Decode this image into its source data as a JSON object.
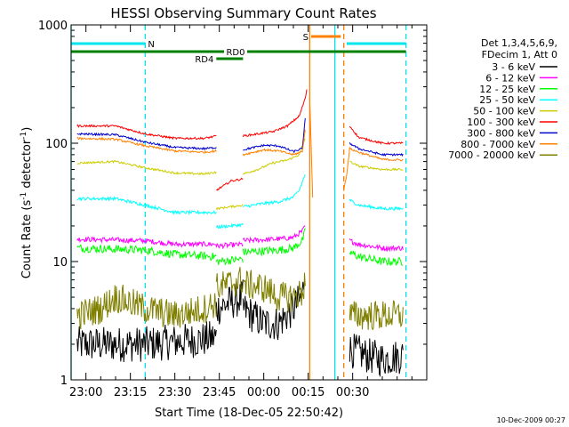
{
  "chart_data": {
    "type": "line",
    "title": "HESSI Observing Summary Count Rates",
    "xlabel": "Start Time (18-Dec-05 22:50:42)",
    "ylabel": "Count Rate (s",
    "ylabel_sup": "-1",
    "ylabel_tail": " detector",
    "ylabel_sup2": "-1",
    "ylabel_end": ")",
    "y_scale": "log",
    "ylim": [
      1,
      1000
    ],
    "xlim_minutes": [
      -5,
      115
    ],
    "x_tick_labels": [
      "23:00",
      "23:15",
      "23:30",
      "23:45",
      "00:00",
      "00:15",
      "00:30"
    ],
    "x_tick_minutes": [
      0,
      15,
      30,
      45,
      60,
      75,
      90
    ],
    "y_tick_labels": [
      "1",
      "10",
      "100",
      "1000"
    ],
    "y_tick_values": [
      1,
      10,
      100,
      1000
    ],
    "legend_position": "right",
    "legend_header": [
      "Det 1,3,4,5,6,9,",
      "FDecim 1, Att 0"
    ],
    "footer_text": "10-Dec-2009 00:27",
    "flag_bars": [
      {
        "label": "N",
        "row": 1,
        "color": "#00e5ee",
        "segments": [
          [
            -5,
            20
          ],
          [
            88,
            108
          ]
        ]
      },
      {
        "label": "S",
        "row": 0,
        "color": "#ff8000",
        "segments": [
          [
            76,
            86
          ]
        ]
      },
      {
        "label": "RD0",
        "row": 2,
        "color": "#008000",
        "segments": [
          [
            -5,
            108
          ]
        ]
      },
      {
        "label": "RD4",
        "row": 3,
        "color": "#008000",
        "segments": [
          [
            44,
            53
          ]
        ]
      }
    ],
    "vlines": [
      {
        "x": -5,
        "color": "#00e5ee",
        "style": "solid"
      },
      {
        "x": 20,
        "color": "#00e5ee",
        "style": "dashed"
      },
      {
        "x": 75.5,
        "color": "#ff8000",
        "style": "solid"
      },
      {
        "x": 84,
        "color": "#00e5ee",
        "style": "solid"
      },
      {
        "x": 87,
        "color": "#ff8000",
        "style": "dashed"
      },
      {
        "x": 108,
        "color": "#00e5ee",
        "style": "dashed"
      }
    ],
    "series": [
      {
        "name": "3 - 6 keV",
        "color": "#000000",
        "noise": 0.35,
        "segments": [
          {
            "x": [
              -3,
              10,
              20,
              30,
              40,
              44
            ],
            "y": [
              2.0,
              2.0,
              2.0,
              2.1,
              2.2,
              2.3
            ]
          },
          {
            "x": [
              44,
              53
            ],
            "y": [
              4.0,
              5.0
            ]
          },
          {
            "x": [
              53,
              60,
              65,
              70,
              73,
              74
            ],
            "y": [
              4.0,
              3.0,
              3.0,
              4.0,
              5.0,
              9.0
            ]
          },
          {
            "x": [
              89,
              95,
              100,
              107
            ],
            "y": [
              1.8,
              1.6,
              1.5,
              1.6
            ]
          }
        ]
      },
      {
        "name": "6 - 12 keV",
        "color": "#ff00ff",
        "noise": 0.05,
        "segments": [
          {
            "x": [
              -3,
              20,
              30,
              44
            ],
            "y": [
              15.5,
              15.0,
              14.0,
              14.0
            ]
          },
          {
            "x": [
              44,
              53
            ],
            "y": [
              13.5,
              14.0
            ]
          },
          {
            "x": [
              53,
              65,
              70,
              73,
              74
            ],
            "y": [
              15.0,
              15.5,
              16.0,
              18.0,
              20.0
            ]
          },
          {
            "x": [
              89,
              92,
              100,
              107
            ],
            "y": [
              15.0,
              14.0,
              13.0,
              13.0
            ]
          }
        ]
      },
      {
        "name": "12 - 25 keV",
        "color": "#00ff00",
        "noise": 0.08,
        "segments": [
          {
            "x": [
              -3,
              20,
              30,
              44
            ],
            "y": [
              13.0,
              12.5,
              11.5,
              11.0
            ]
          },
          {
            "x": [
              44,
              53
            ],
            "y": [
              10.0,
              10.5
            ]
          },
          {
            "x": [
              53,
              65,
              70,
              73,
              74
            ],
            "y": [
              12.0,
              12.5,
              13.0,
              15.0,
              18.0
            ]
          },
          {
            "x": [
              89,
              92,
              100,
              107
            ],
            "y": [
              12.0,
              11.0,
              10.0,
              10.0
            ]
          }
        ]
      },
      {
        "name": "25 - 50 keV",
        "color": "#00ffff",
        "noise": 0.03,
        "segments": [
          {
            "x": [
              -3,
              10,
              20,
              30,
              40,
              44
            ],
            "y": [
              34.0,
              34.0,
              30.0,
              26.0,
              26.0,
              26.0
            ]
          },
          {
            "x": [
              44,
              53
            ],
            "y": [
              19.5,
              20.5
            ]
          },
          {
            "x": [
              53,
              60,
              65,
              70,
              72,
              74
            ],
            "y": [
              29.0,
              31.0,
              32.0,
              35.0,
              40.0,
              55.0
            ]
          },
          {
            "x": [
              89,
              92,
              100,
              107
            ],
            "y": [
              33.0,
              30.0,
              28.0,
              28.0
            ]
          }
        ]
      },
      {
        "name": "50 - 100 keV",
        "color": "#cccc00",
        "noise": 0.02,
        "segments": [
          {
            "x": [
              -3,
              10,
              20,
              30,
              40,
              44
            ],
            "y": [
              68.0,
              70.0,
              62.0,
              56.0,
              55.0,
              57.0
            ]
          },
          {
            "x": [
              44,
              53
            ],
            "y": [
              28.0,
              30.0
            ]
          },
          {
            "x": [
              53,
              58,
              63,
              68,
              72,
              74
            ],
            "y": [
              55.0,
              60.0,
              68.0,
              72.0,
              80.0,
              110.0
            ]
          },
          {
            "x": [
              89,
              92,
              100,
              107
            ],
            "y": [
              70.0,
              64.0,
              60.0,
              60.0
            ]
          }
        ]
      },
      {
        "name": "100 - 300 keV",
        "color": "#ff0000",
        "noise": 0.02,
        "segments": [
          {
            "x": [
              -3,
              10,
              20,
              30,
              40,
              44
            ],
            "y": [
              140.0,
              140.0,
              120.0,
              110.0,
              110.0,
              115.0
            ]
          },
          {
            "x": [
              44,
              49,
              53
            ],
            "y": [
              40.0,
              48.0,
              50.0
            ]
          },
          {
            "x": [
              53,
              58,
              63,
              68,
              72,
              74,
              74.5
            ],
            "y": [
              115.0,
              120.0,
              125.0,
              140.0,
              170.0,
              240.0,
              280.0
            ]
          },
          {
            "x": [
              89,
              92,
              100,
              107
            ],
            "y": [
              140.0,
              112.0,
              100.0,
              100.0
            ]
          }
        ]
      },
      {
        "name": "300 - 800 keV",
        "color": "#0000cc",
        "noise": 0.02,
        "segments": [
          {
            "x": [
              -3,
              10,
              20,
              30,
              40,
              44
            ],
            "y": [
              120.0,
              118.0,
              102.0,
              92.0,
              90.0,
              92.0
            ]
          },
          {
            "x": [
              53,
              60,
              65,
              70,
              73,
              74
            ],
            "y": [
              88.0,
              96.0,
              95.0,
              85.0,
              90.0,
              160.0
            ]
          },
          {
            "x": [
              89,
              92,
              100,
              107
            ],
            "y": [
              100.0,
              90.0,
              80.0,
              80.0
            ]
          }
        ]
      },
      {
        "name": "800 - 7000 keV",
        "color": "#ff8000",
        "noise": 0.02,
        "segments": [
          {
            "x": [
              -3,
              10,
              20,
              30,
              40,
              44
            ],
            "y": [
              110.0,
              108.0,
              95.0,
              86.0,
              84.0,
              86.0
            ]
          },
          {
            "x": [
              53,
              60,
              65,
              70,
              73,
              74
            ],
            "y": [
              80.0,
              88.0,
              86.0,
              80.0,
              85.0,
              130.0
            ]
          },
          {
            "x": [
              75.5,
              76.5
            ],
            "y": [
              250.0,
              35.0
            ]
          },
          {
            "x": [
              87,
              88,
              89,
              92,
              100,
              107
            ],
            "y": [
              40.0,
              55.0,
              90.0,
              84.0,
              73.0,
              72.0
            ]
          }
        ]
      },
      {
        "name": "7000 - 20000 keV",
        "color": "#808000",
        "noise": 0.3,
        "segments": [
          {
            "x": [
              -3,
              5,
              10,
              20,
              30,
              40,
              44
            ],
            "y": [
              3.5,
              4.0,
              5.0,
              4.0,
              3.5,
              4.0,
              4.5
            ]
          },
          {
            "x": [
              44,
              53
            ],
            "y": [
              6.0,
              7.0
            ]
          },
          {
            "x": [
              53,
              60,
              65,
              70,
              73,
              74
            ],
            "y": [
              6.5,
              6.0,
              5.0,
              5.0,
              5.5,
              7.0
            ]
          },
          {
            "x": [
              89,
              100,
              107
            ],
            "y": [
              3.5,
              3.5,
              3.5
            ]
          }
        ]
      }
    ]
  }
}
